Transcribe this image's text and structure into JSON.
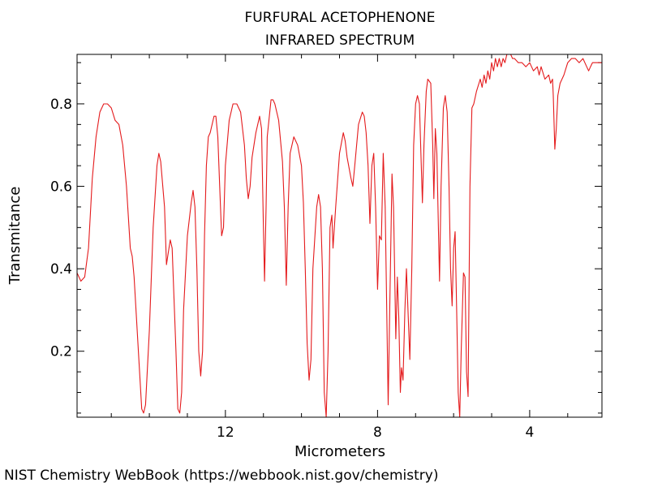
{
  "chart_data": {
    "type": "line",
    "title": "FURFURAL ACETOPHENONE",
    "subtitle": "INFRARED SPECTRUM",
    "xlabel": "Micrometers",
    "ylabel": "Transmitance",
    "xlim": [
      15.9,
      2.1
    ],
    "ylim": [
      0.04,
      0.92
    ],
    "x_ticks": [
      12,
      8,
      4
    ],
    "y_ticks": [
      0.2,
      0.4,
      0.6,
      0.8
    ],
    "grid": false,
    "series": [
      {
        "color": "#e41a1c",
        "points": [
          [
            15.9,
            0.39
          ],
          [
            15.8,
            0.37
          ],
          [
            15.7,
            0.38
          ],
          [
            15.6,
            0.45
          ],
          [
            15.5,
            0.62
          ],
          [
            15.4,
            0.72
          ],
          [
            15.3,
            0.78
          ],
          [
            15.2,
            0.8
          ],
          [
            15.1,
            0.8
          ],
          [
            15.0,
            0.79
          ],
          [
            14.9,
            0.76
          ],
          [
            14.8,
            0.75
          ],
          [
            14.7,
            0.7
          ],
          [
            14.6,
            0.6
          ],
          [
            14.5,
            0.45
          ],
          [
            14.45,
            0.43
          ],
          [
            14.4,
            0.38
          ],
          [
            14.3,
            0.22
          ],
          [
            14.2,
            0.06
          ],
          [
            14.15,
            0.05
          ],
          [
            14.1,
            0.07
          ],
          [
            14.0,
            0.25
          ],
          [
            13.9,
            0.5
          ],
          [
            13.8,
            0.65
          ],
          [
            13.75,
            0.68
          ],
          [
            13.7,
            0.66
          ],
          [
            13.6,
            0.55
          ],
          [
            13.55,
            0.41
          ],
          [
            13.5,
            0.44
          ],
          [
            13.45,
            0.47
          ],
          [
            13.4,
            0.45
          ],
          [
            13.3,
            0.2
          ],
          [
            13.25,
            0.06
          ],
          [
            13.2,
            0.05
          ],
          [
            13.15,
            0.1
          ],
          [
            13.1,
            0.3
          ],
          [
            13.0,
            0.48
          ],
          [
            12.9,
            0.56
          ],
          [
            12.85,
            0.59
          ],
          [
            12.8,
            0.55
          ],
          [
            12.75,
            0.4
          ],
          [
            12.7,
            0.2
          ],
          [
            12.65,
            0.14
          ],
          [
            12.6,
            0.2
          ],
          [
            12.55,
            0.48
          ],
          [
            12.5,
            0.65
          ],
          [
            12.45,
            0.72
          ],
          [
            12.4,
            0.73
          ],
          [
            12.3,
            0.77
          ],
          [
            12.25,
            0.77
          ],
          [
            12.2,
            0.72
          ],
          [
            12.15,
            0.6
          ],
          [
            12.1,
            0.48
          ],
          [
            12.05,
            0.5
          ],
          [
            12.0,
            0.65
          ],
          [
            11.9,
            0.76
          ],
          [
            11.8,
            0.8
          ],
          [
            11.7,
            0.8
          ],
          [
            11.6,
            0.78
          ],
          [
            11.5,
            0.7
          ],
          [
            11.45,
            0.62
          ],
          [
            11.4,
            0.57
          ],
          [
            11.35,
            0.6
          ],
          [
            11.3,
            0.67
          ],
          [
            11.2,
            0.73
          ],
          [
            11.1,
            0.77
          ],
          [
            11.05,
            0.74
          ],
          [
            11.0,
            0.5
          ],
          [
            10.97,
            0.37
          ],
          [
            10.93,
            0.55
          ],
          [
            10.9,
            0.72
          ],
          [
            10.8,
            0.81
          ],
          [
            10.75,
            0.81
          ],
          [
            10.7,
            0.8
          ],
          [
            10.6,
            0.76
          ],
          [
            10.5,
            0.66
          ],
          [
            10.45,
            0.55
          ],
          [
            10.4,
            0.36
          ],
          [
            10.35,
            0.55
          ],
          [
            10.3,
            0.68
          ],
          [
            10.2,
            0.72
          ],
          [
            10.1,
            0.7
          ],
          [
            10.0,
            0.65
          ],
          [
            9.95,
            0.56
          ],
          [
            9.9,
            0.4
          ],
          [
            9.85,
            0.22
          ],
          [
            9.8,
            0.13
          ],
          [
            9.75,
            0.18
          ],
          [
            9.7,
            0.4
          ],
          [
            9.6,
            0.55
          ],
          [
            9.55,
            0.58
          ],
          [
            9.5,
            0.55
          ],
          [
            9.45,
            0.4
          ],
          [
            9.4,
            0.1
          ],
          [
            9.35,
            0.04
          ],
          [
            9.3,
            0.2
          ],
          [
            9.25,
            0.5
          ],
          [
            9.2,
            0.53
          ],
          [
            9.17,
            0.45
          ],
          [
            9.1,
            0.55
          ],
          [
            9.0,
            0.68
          ],
          [
            8.9,
            0.73
          ],
          [
            8.85,
            0.71
          ],
          [
            8.8,
            0.67
          ],
          [
            8.7,
            0.62
          ],
          [
            8.65,
            0.6
          ],
          [
            8.6,
            0.65
          ],
          [
            8.5,
            0.75
          ],
          [
            8.4,
            0.78
          ],
          [
            8.35,
            0.77
          ],
          [
            8.3,
            0.73
          ],
          [
            8.25,
            0.65
          ],
          [
            8.2,
            0.51
          ],
          [
            8.15,
            0.65
          ],
          [
            8.1,
            0.68
          ],
          [
            8.05,
            0.55
          ],
          [
            8.0,
            0.35
          ],
          [
            7.95,
            0.48
          ],
          [
            7.9,
            0.47
          ],
          [
            7.85,
            0.68
          ],
          [
            7.8,
            0.55
          ],
          [
            7.75,
            0.25
          ],
          [
            7.72,
            0.07
          ],
          [
            7.68,
            0.3
          ],
          [
            7.62,
            0.63
          ],
          [
            7.58,
            0.55
          ],
          [
            7.52,
            0.23
          ],
          [
            7.48,
            0.38
          ],
          [
            7.44,
            0.28
          ],
          [
            7.4,
            0.1
          ],
          [
            7.37,
            0.16
          ],
          [
            7.33,
            0.13
          ],
          [
            7.28,
            0.3
          ],
          [
            7.24,
            0.4
          ],
          [
            7.2,
            0.3
          ],
          [
            7.15,
            0.18
          ],
          [
            7.1,
            0.4
          ],
          [
            7.05,
            0.7
          ],
          [
            7.0,
            0.8
          ],
          [
            6.95,
            0.82
          ],
          [
            6.9,
            0.8
          ],
          [
            6.85,
            0.65
          ],
          [
            6.82,
            0.56
          ],
          [
            6.78,
            0.7
          ],
          [
            6.72,
            0.83
          ],
          [
            6.68,
            0.86
          ],
          [
            6.6,
            0.85
          ],
          [
            6.55,
            0.7
          ],
          [
            6.52,
            0.57
          ],
          [
            6.48,
            0.74
          ],
          [
            6.44,
            0.68
          ],
          [
            6.4,
            0.5
          ],
          [
            6.37,
            0.37
          ],
          [
            6.33,
            0.6
          ],
          [
            6.27,
            0.79
          ],
          [
            6.22,
            0.82
          ],
          [
            6.17,
            0.78
          ],
          [
            6.12,
            0.6
          ],
          [
            6.08,
            0.4
          ],
          [
            6.04,
            0.31
          ],
          [
            6.0,
            0.45
          ],
          [
            5.96,
            0.49
          ],
          [
            5.92,
            0.3
          ],
          [
            5.88,
            0.1
          ],
          [
            5.84,
            0.04
          ],
          [
            5.8,
            0.2
          ],
          [
            5.74,
            0.39
          ],
          [
            5.7,
            0.38
          ],
          [
            5.66,
            0.15
          ],
          [
            5.62,
            0.09
          ],
          [
            5.57,
            0.6
          ],
          [
            5.52,
            0.79
          ],
          [
            5.47,
            0.8
          ],
          [
            5.4,
            0.83
          ],
          [
            5.3,
            0.86
          ],
          [
            5.25,
            0.84
          ],
          [
            5.2,
            0.87
          ],
          [
            5.15,
            0.85
          ],
          [
            5.1,
            0.88
          ],
          [
            5.05,
            0.86
          ],
          [
            5.0,
            0.9
          ],
          [
            4.95,
            0.88
          ],
          [
            4.9,
            0.91
          ],
          [
            4.85,
            0.89
          ],
          [
            4.8,
            0.91
          ],
          [
            4.75,
            0.89
          ],
          [
            4.7,
            0.91
          ],
          [
            4.65,
            0.9
          ],
          [
            4.6,
            0.92
          ],
          [
            4.5,
            0.92
          ],
          [
            4.45,
            0.91
          ],
          [
            4.4,
            0.91
          ],
          [
            4.3,
            0.9
          ],
          [
            4.2,
            0.9
          ],
          [
            4.1,
            0.89
          ],
          [
            4.0,
            0.9
          ],
          [
            3.9,
            0.88
          ],
          [
            3.8,
            0.89
          ],
          [
            3.75,
            0.87
          ],
          [
            3.7,
            0.89
          ],
          [
            3.6,
            0.86
          ],
          [
            3.5,
            0.87
          ],
          [
            3.45,
            0.85
          ],
          [
            3.4,
            0.86
          ],
          [
            3.38,
            0.82
          ],
          [
            3.34,
            0.69
          ],
          [
            3.3,
            0.74
          ],
          [
            3.26,
            0.82
          ],
          [
            3.2,
            0.85
          ],
          [
            3.1,
            0.87
          ],
          [
            3.0,
            0.9
          ],
          [
            2.9,
            0.91
          ],
          [
            2.8,
            0.91
          ],
          [
            2.7,
            0.9
          ],
          [
            2.6,
            0.91
          ],
          [
            2.5,
            0.89
          ],
          [
            2.45,
            0.88
          ],
          [
            2.4,
            0.89
          ],
          [
            2.35,
            0.9
          ],
          [
            2.25,
            0.9
          ],
          [
            2.15,
            0.9
          ],
          [
            2.1,
            0.9
          ]
        ]
      }
    ]
  },
  "footer": {
    "credit": "NIST Chemistry WebBook (https://webbook.nist.gov/chemistry)"
  }
}
